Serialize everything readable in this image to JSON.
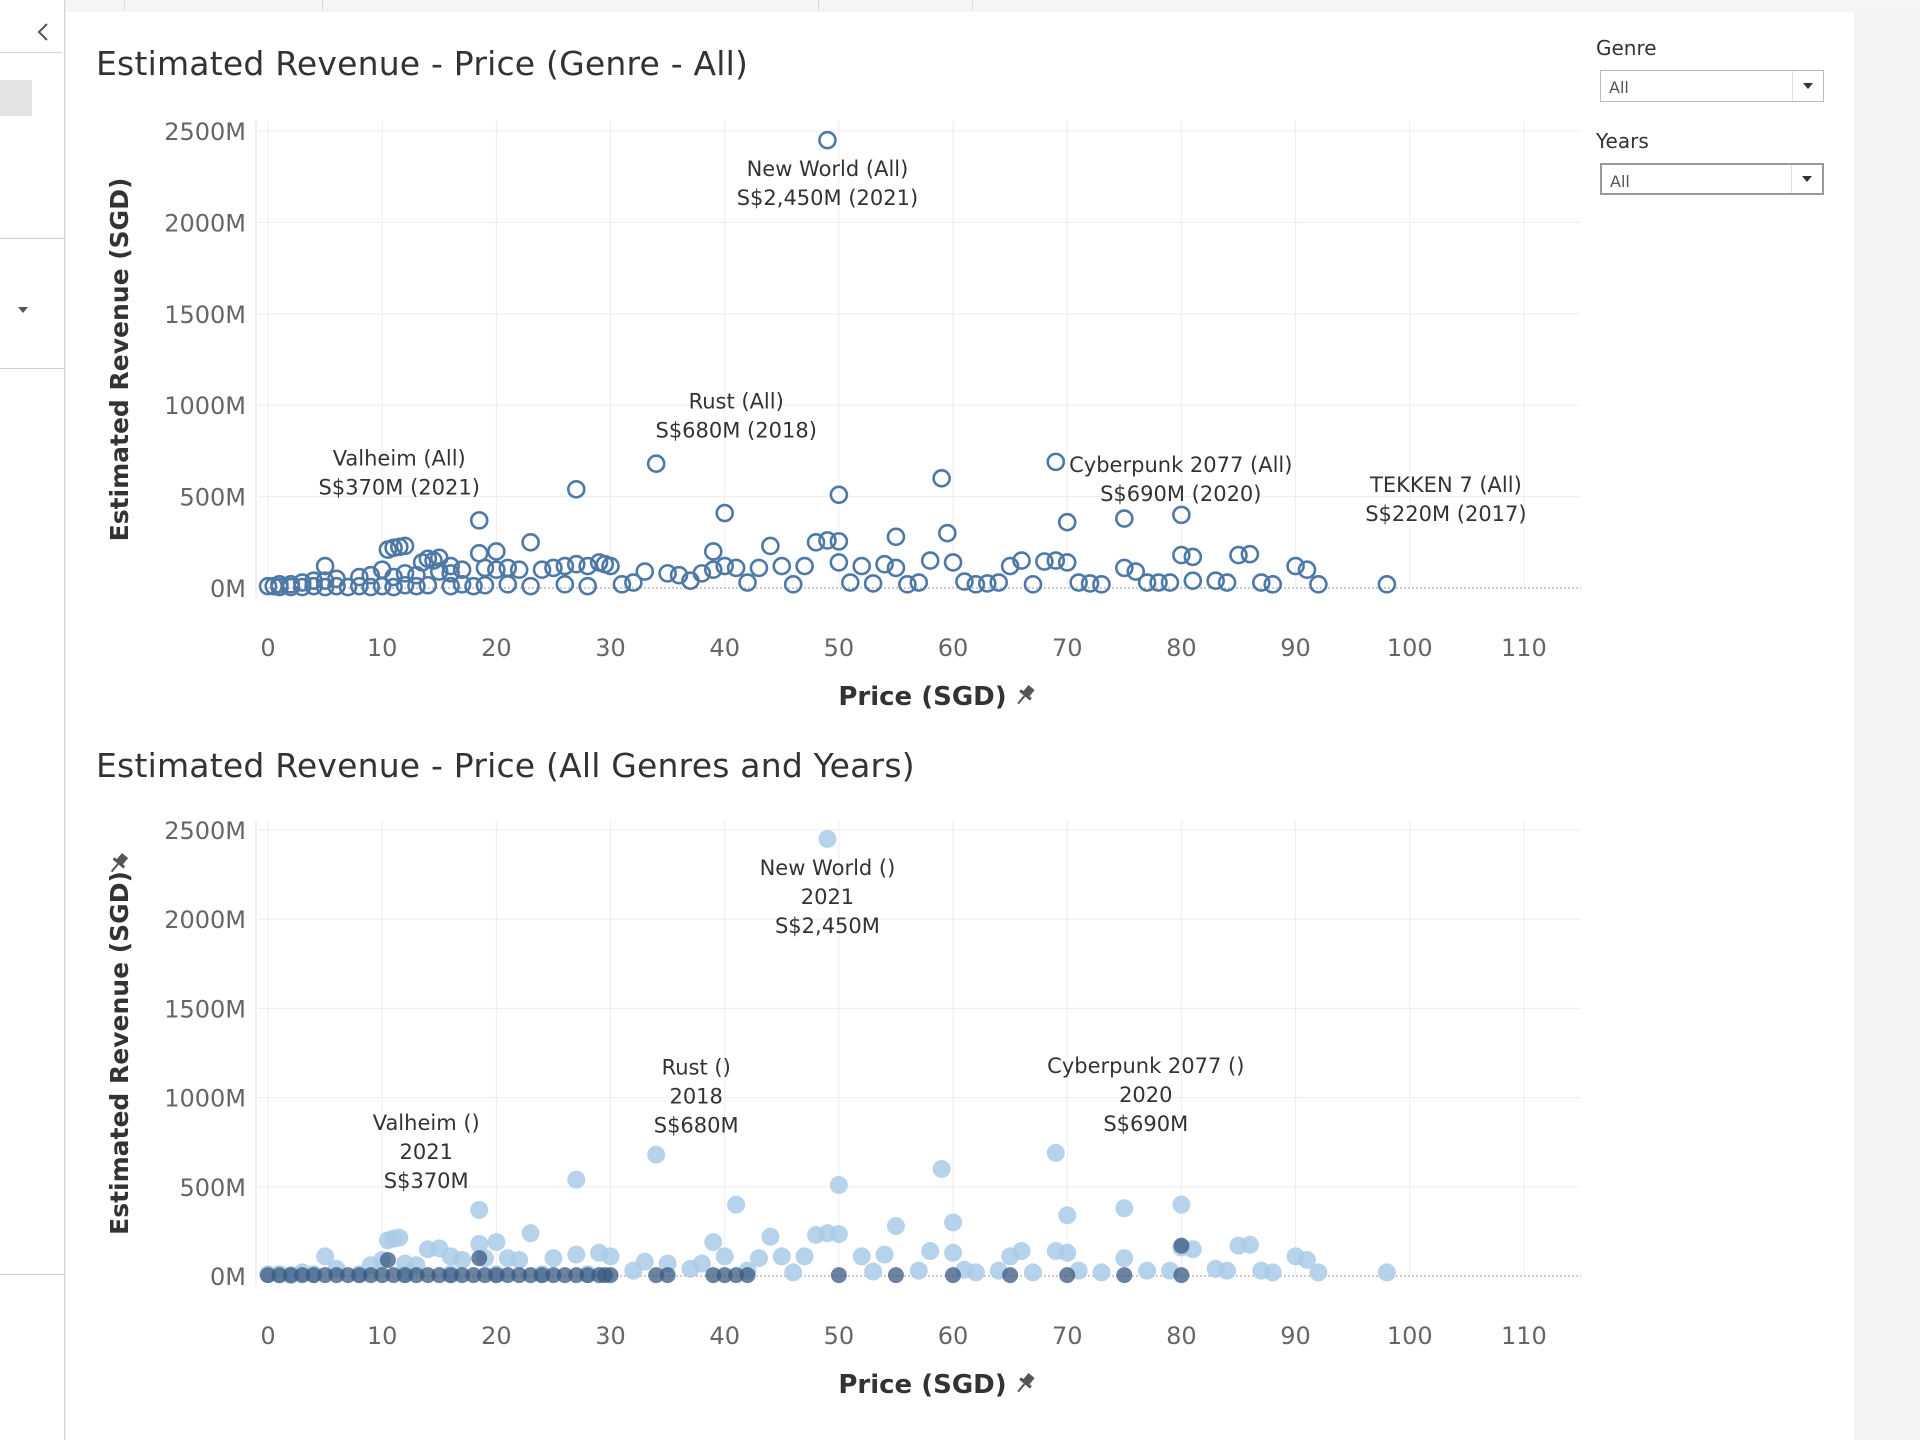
{
  "filters": {
    "genre": {
      "label": "Genre",
      "value": "All"
    },
    "years": {
      "label": "Years",
      "value": "All"
    }
  },
  "colors": {
    "top_marks": "#4e79a7",
    "bottom_marks_light": "#a9cbe8",
    "bottom_marks_dark": "#3a5a80",
    "gridline": "#ededed"
  },
  "icons": {
    "collapse": "chevron-left-icon",
    "pin": "pin-icon",
    "dropdown": "caret-down-icon"
  },
  "chart_data": [
    {
      "type": "scatter",
      "title": "Estimated Revenue - Price (Genre - All)",
      "xlabel": "Price (SGD)",
      "ylabel": "Estimated Revenue (SGD)",
      "xlim": [
        0,
        115
      ],
      "ylim": [
        0,
        2500
      ],
      "x_ticks": [
        "0",
        "10",
        "20",
        "30",
        "40",
        "50",
        "60",
        "70",
        "80",
        "90",
        "100",
        "110"
      ],
      "y_ticks": [
        "0M",
        "500M",
        "1000M",
        "1500M",
        "2000M",
        "2500M"
      ],
      "marker": "hollow-circle",
      "grid": true,
      "annotations": [
        {
          "x": 49,
          "y": 2450,
          "lines": [
            "New World (All)",
            "S$2,450M (2021)"
          ]
        },
        {
          "x": 34,
          "y": 680,
          "lines": [
            "Rust (All)",
            "S$680M (2018)"
          ]
        },
        {
          "x": 18.5,
          "y": 370,
          "lines": [
            "Valheim (All)",
            "S$370M (2021)"
          ]
        },
        {
          "x": 69,
          "y": 690,
          "lines": [
            "Cyberpunk 2077 (All)",
            "S$690M (2020)"
          ]
        },
        {
          "x": 110,
          "y": 220,
          "lines": [
            "TEKKEN 7 (All)",
            "S$220M (2017)"
          ]
        }
      ],
      "points": [
        [
          49,
          2450
        ],
        [
          34,
          680
        ],
        [
          69,
          690
        ],
        [
          59,
          600
        ],
        [
          27,
          540
        ],
        [
          50,
          510
        ],
        [
          40,
          410
        ],
        [
          18.5,
          370
        ],
        [
          70,
          360
        ],
        [
          75,
          380
        ],
        [
          80,
          400
        ],
        [
          55,
          280
        ],
        [
          59.5,
          300
        ],
        [
          23,
          250
        ],
        [
          44,
          230
        ],
        [
          39,
          200
        ],
        [
          48,
          250
        ],
        [
          49,
          260
        ],
        [
          50,
          255
        ],
        [
          10.5,
          210
        ],
        [
          11,
          220
        ],
        [
          11.5,
          225
        ],
        [
          12,
          230
        ],
        [
          18.5,
          190
        ],
        [
          20,
          200
        ],
        [
          14,
          160
        ],
        [
          15,
          165
        ],
        [
          14.5,
          150
        ],
        [
          13.5,
          140
        ],
        [
          5,
          120
        ],
        [
          10,
          100
        ],
        [
          16,
          120
        ],
        [
          80,
          180
        ],
        [
          81,
          170
        ],
        [
          85,
          180
        ],
        [
          86,
          185
        ],
        [
          90,
          120
        ],
        [
          91,
          100
        ],
        [
          75,
          110
        ],
        [
          76,
          90
        ],
        [
          70,
          140
        ],
        [
          69,
          150
        ],
        [
          68,
          145
        ],
        [
          66,
          150
        ],
        [
          65,
          120
        ],
        [
          60,
          140
        ],
        [
          58,
          150
        ],
        [
          54,
          130
        ],
        [
          55,
          110
        ],
        [
          52,
          120
        ],
        [
          50,
          140
        ],
        [
          47,
          120
        ],
        [
          45,
          120
        ],
        [
          43,
          110
        ],
        [
          41,
          110
        ],
        [
          40,
          120
        ],
        [
          39,
          100
        ],
        [
          38,
          80
        ],
        [
          36,
          70
        ],
        [
          35,
          80
        ],
        [
          33,
          90
        ],
        [
          30,
          120
        ],
        [
          29.5,
          130
        ],
        [
          29,
          140
        ],
        [
          28,
          120
        ],
        [
          27,
          130
        ],
        [
          26,
          120
        ],
        [
          25,
          110
        ],
        [
          24,
          100
        ],
        [
          22,
          100
        ],
        [
          21,
          110
        ],
        [
          20,
          100
        ],
        [
          19,
          110
        ],
        [
          17,
          100
        ],
        [
          16,
          80
        ],
        [
          15,
          90
        ],
        [
          13,
          70
        ],
        [
          12,
          80
        ],
        [
          11,
          60
        ],
        [
          9,
          70
        ],
        [
          8,
          60
        ],
        [
          6,
          50
        ],
        [
          5,
          40
        ],
        [
          4,
          40
        ],
        [
          3,
          30
        ],
        [
          2,
          20
        ],
        [
          1,
          20
        ],
        [
          0.5,
          10
        ],
        [
          0,
          10
        ],
        [
          98,
          20
        ],
        [
          92,
          20
        ],
        [
          88,
          20
        ],
        [
          87,
          30
        ],
        [
          84,
          30
        ],
        [
          83,
          40
        ],
        [
          81,
          40
        ],
        [
          79,
          30
        ],
        [
          78,
          30
        ],
        [
          77,
          30
        ],
        [
          73,
          20
        ],
        [
          72,
          25
        ],
        [
          71,
          30
        ],
        [
          67,
          20
        ],
        [
          64,
          30
        ],
        [
          63,
          25
        ],
        [
          62,
          20
        ],
        [
          61,
          35
        ],
        [
          57,
          30
        ],
        [
          56,
          20
        ],
        [
          53,
          25
        ],
        [
          51,
          30
        ],
        [
          46,
          20
        ],
        [
          42,
          30
        ],
        [
          37,
          40
        ],
        [
          32,
          30
        ],
        [
          31,
          20
        ],
        [
          28,
          10
        ],
        [
          26,
          20
        ],
        [
          23,
          10
        ],
        [
          21,
          20
        ],
        [
          19,
          15
        ],
        [
          18,
          10
        ],
        [
          17,
          20
        ],
        [
          16,
          10
        ],
        [
          14,
          15
        ],
        [
          13,
          10
        ],
        [
          12,
          15
        ],
        [
          11,
          5
        ],
        [
          10,
          10
        ],
        [
          9,
          5
        ],
        [
          8,
          10
        ],
        [
          7,
          5
        ],
        [
          6,
          10
        ],
        [
          5,
          5
        ],
        [
          4,
          10
        ],
        [
          3,
          5
        ],
        [
          2,
          5
        ],
        [
          1,
          5
        ]
      ]
    },
    {
      "type": "scatter",
      "title": "Estimated Revenue - Price (All Genres and Years)",
      "xlabel": "Price (SGD)",
      "ylabel": "Estimated Revenue (SGD)",
      "xlim": [
        0,
        115
      ],
      "ylim": [
        0,
        2500
      ],
      "x_ticks": [
        "0",
        "10",
        "20",
        "30",
        "40",
        "50",
        "60",
        "70",
        "80",
        "90",
        "100",
        "110"
      ],
      "y_ticks": [
        "0M",
        "500M",
        "1000M",
        "1500M",
        "2000M",
        "2500M"
      ],
      "marker": "filled-circle",
      "grid": true,
      "annotations": [
        {
          "x": 49,
          "y": 2450,
          "lines": [
            "New World ()",
            "2021",
            "S$2,450M"
          ]
        },
        {
          "x": 34,
          "y": 680,
          "lines": [
            "Rust ()",
            "2018",
            "S$680M"
          ]
        },
        {
          "x": 18.5,
          "y": 370,
          "lines": [
            "Valheim ()",
            "2021",
            "S$370M"
          ]
        },
        {
          "x": 69,
          "y": 690,
          "lines": [
            "Cyberpunk 2077 ()",
            "2020",
            "S$690M"
          ]
        }
      ],
      "points": [
        [
          49,
          2450
        ],
        [
          34,
          680
        ],
        [
          69,
          690
        ],
        [
          59,
          600
        ],
        [
          27,
          540
        ],
        [
          50,
          510
        ],
        [
          41,
          400
        ],
        [
          18.5,
          370
        ],
        [
          70,
          340
        ],
        [
          75,
          380
        ],
        [
          80,
          400
        ],
        [
          55,
          280
        ],
        [
          60,
          300
        ],
        [
          23,
          240
        ],
        [
          44,
          220
        ],
        [
          39,
          190
        ],
        [
          48,
          230
        ],
        [
          49,
          240
        ],
        [
          50,
          235
        ],
        [
          10.5,
          200
        ],
        [
          11,
          210
        ],
        [
          11.5,
          215
        ],
        [
          18.5,
          180
        ],
        [
          20,
          190
        ],
        [
          14,
          150
        ],
        [
          15,
          155
        ],
        [
          5,
          110
        ],
        [
          10,
          90
        ],
        [
          16,
          110
        ],
        [
          80,
          160
        ],
        [
          81,
          150
        ],
        [
          85,
          170
        ],
        [
          86,
          175
        ],
        [
          90,
          110
        ],
        [
          91,
          90
        ],
        [
          75,
          100
        ],
        [
          70,
          130
        ],
        [
          69,
          140
        ],
        [
          66,
          140
        ],
        [
          65,
          110
        ],
        [
          60,
          130
        ],
        [
          58,
          140
        ],
        [
          54,
          120
        ],
        [
          52,
          110
        ],
        [
          47,
          110
        ],
        [
          45,
          110
        ],
        [
          43,
          100
        ],
        [
          40,
          110
        ],
        [
          38,
          70
        ],
        [
          35,
          70
        ],
        [
          33,
          80
        ],
        [
          30,
          110
        ],
        [
          29,
          130
        ],
        [
          27,
          120
        ],
        [
          25,
          100
        ],
        [
          22,
          90
        ],
        [
          21,
          100
        ],
        [
          19,
          100
        ],
        [
          17,
          90
        ],
        [
          13,
          60
        ],
        [
          12,
          70
        ],
        [
          9,
          60
        ],
        [
          6,
          40
        ],
        [
          3,
          20
        ],
        [
          1,
          10
        ],
        [
          0,
          10
        ],
        [
          98,
          20
        ],
        [
          92,
          20
        ],
        [
          88,
          20
        ],
        [
          87,
          30
        ],
        [
          84,
          30
        ],
        [
          83,
          40
        ],
        [
          79,
          30
        ],
        [
          77,
          30
        ],
        [
          73,
          20
        ],
        [
          71,
          30
        ],
        [
          67,
          20
        ],
        [
          64,
          30
        ],
        [
          62,
          20
        ],
        [
          61,
          35
        ],
        [
          57,
          30
        ],
        [
          53,
          25
        ],
        [
          46,
          20
        ],
        [
          42,
          30
        ],
        [
          37,
          40
        ],
        [
          32,
          30
        ],
        [
          28,
          10
        ],
        [
          24,
          10
        ],
        [
          20,
          10
        ],
        [
          16,
          10
        ],
        [
          12,
          10
        ],
        [
          8,
          10
        ],
        [
          4,
          10
        ],
        [
          2,
          5
        ]
      ],
      "dark_points": [
        [
          0,
          5
        ],
        [
          1,
          5
        ],
        [
          2,
          5
        ],
        [
          3,
          5
        ],
        [
          4,
          5
        ],
        [
          5,
          5
        ],
        [
          6,
          5
        ],
        [
          7,
          5
        ],
        [
          8,
          5
        ],
        [
          9,
          5
        ],
        [
          10,
          5
        ],
        [
          11,
          5
        ],
        [
          12,
          5
        ],
        [
          13,
          5
        ],
        [
          14,
          5
        ],
        [
          15,
          5
        ],
        [
          16,
          5
        ],
        [
          17,
          5
        ],
        [
          18,
          5
        ],
        [
          19,
          5
        ],
        [
          20,
          5
        ],
        [
          21,
          5
        ],
        [
          22,
          5
        ],
        [
          23,
          5
        ],
        [
          24,
          5
        ],
        [
          25,
          5
        ],
        [
          26,
          5
        ],
        [
          27,
          5
        ],
        [
          28,
          5
        ],
        [
          29,
          5
        ],
        [
          29.5,
          5
        ],
        [
          30,
          5
        ],
        [
          34,
          5
        ],
        [
          35,
          5
        ],
        [
          39,
          5
        ],
        [
          40,
          5
        ],
        [
          41,
          5
        ],
        [
          42,
          5
        ],
        [
          50,
          5
        ],
        [
          55,
          5
        ],
        [
          60,
          5
        ],
        [
          65,
          5
        ],
        [
          70,
          5
        ],
        [
          75,
          5
        ],
        [
          80,
          5
        ],
        [
          80,
          170
        ],
        [
          18.5,
          100
        ],
        [
          10.5,
          90
        ]
      ]
    }
  ]
}
